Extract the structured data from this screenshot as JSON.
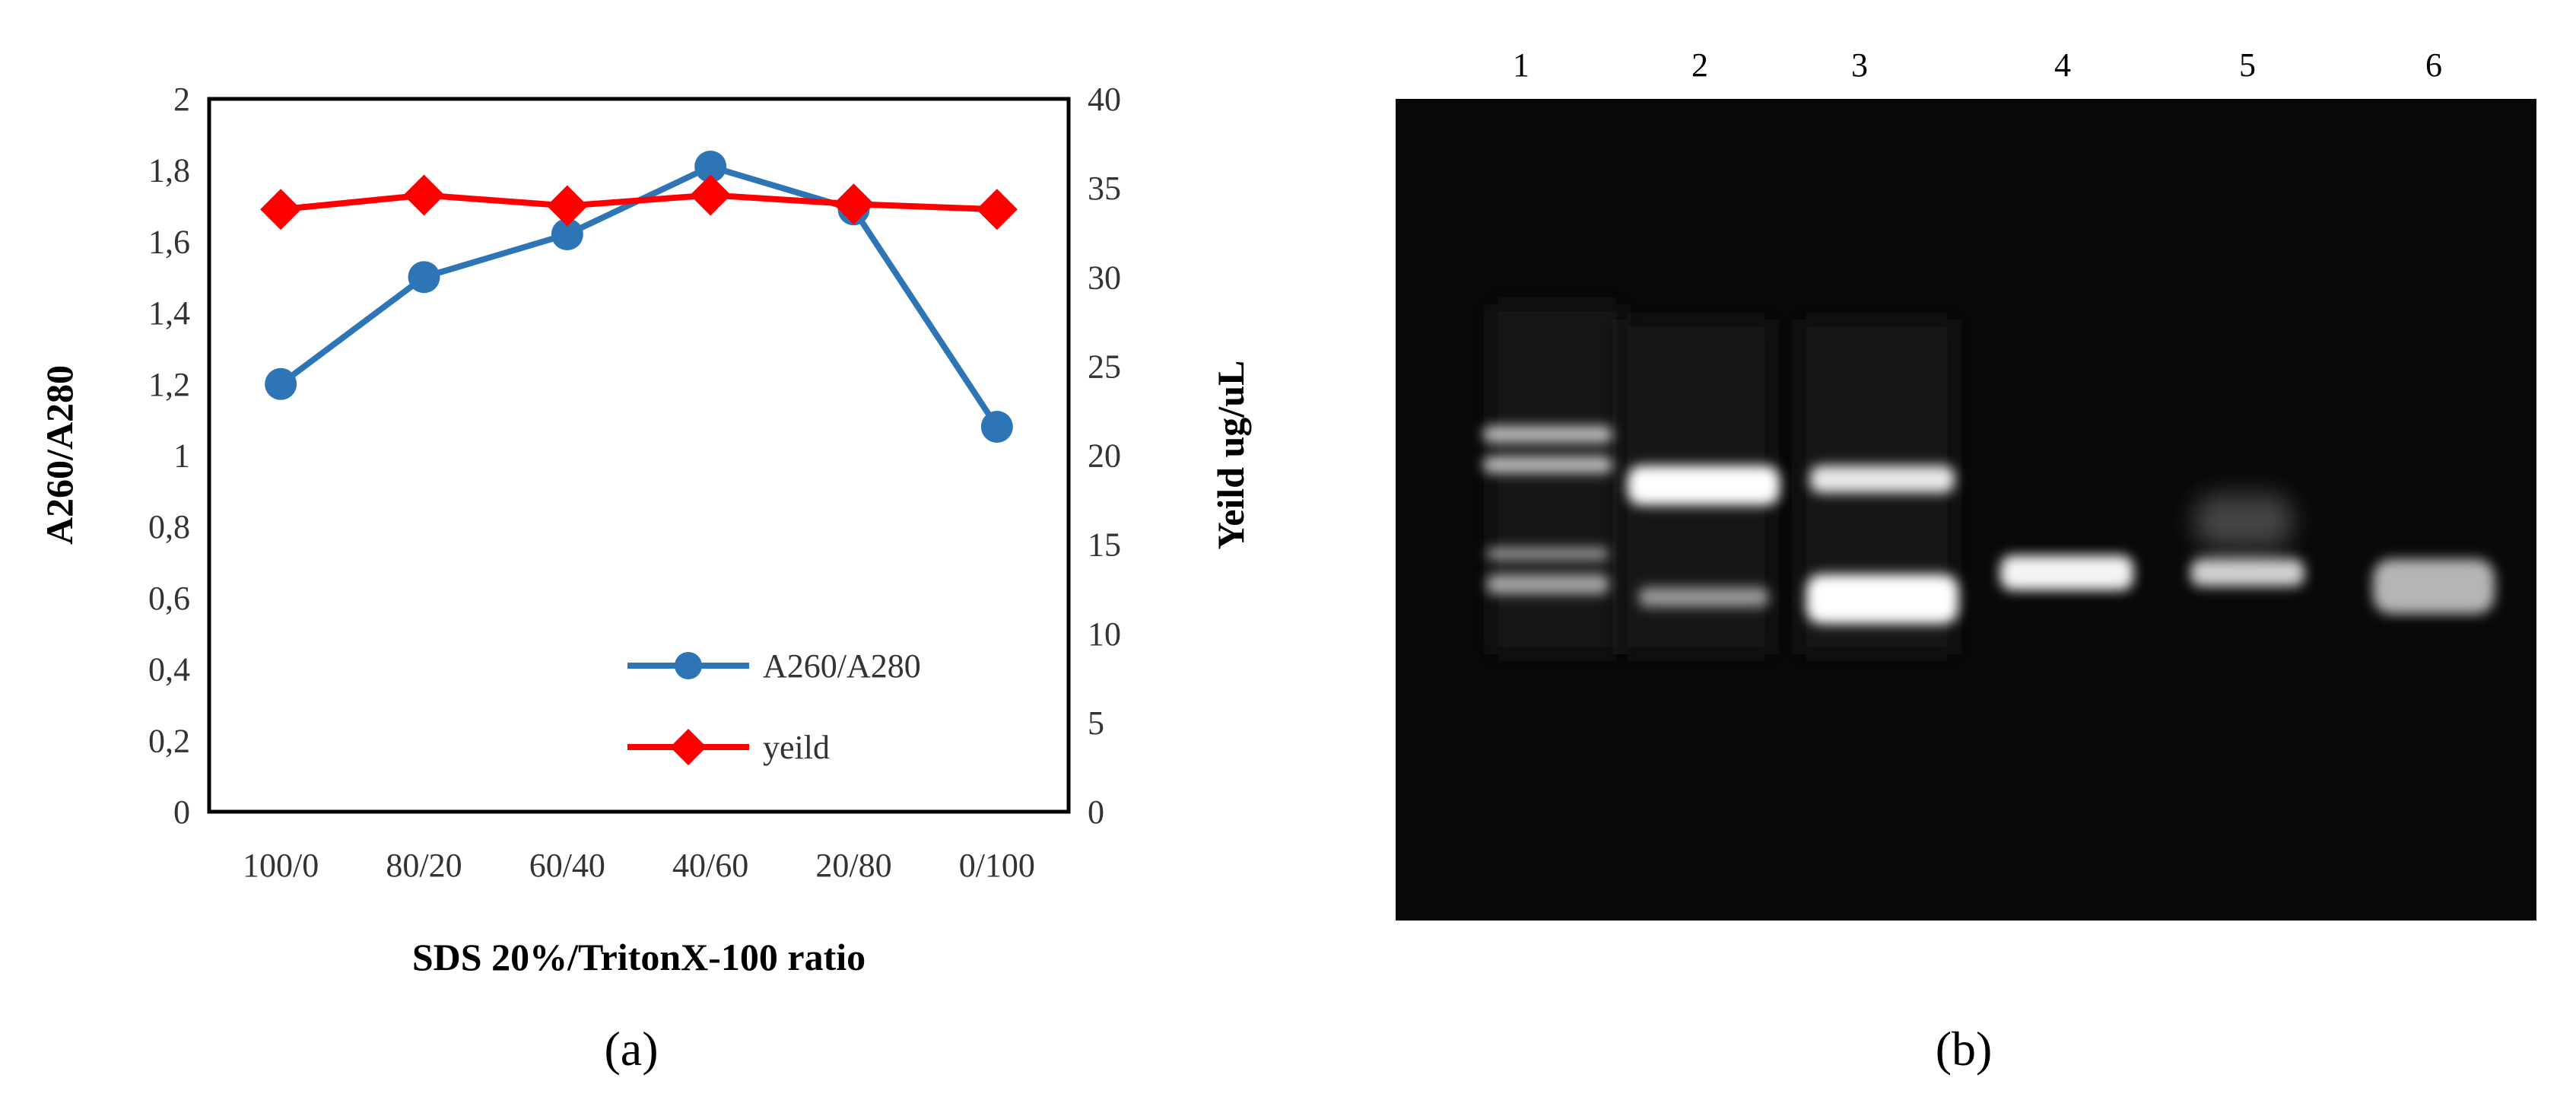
{
  "chart_data": {
    "type": "line",
    "xlabel": "SDS 20%/TritonX-100 ratio",
    "ylabel": "A260/A280",
    "y2label": "Yeild ug/uL",
    "categories": [
      "100/0",
      "80/20",
      "60/40",
      "40/60",
      "20/80",
      "0/100"
    ],
    "ylim": [
      0,
      2
    ],
    "y2lim": [
      0,
      40
    ],
    "yticks": [
      "0",
      "0,2",
      "0,4",
      "0,6",
      "0,8",
      "1",
      "1,2",
      "1,4",
      "1,6",
      "1,8",
      "2"
    ],
    "y2ticks": [
      "0",
      "5",
      "10",
      "15",
      "20",
      "25",
      "30",
      "35",
      "40"
    ],
    "grid": false,
    "legend_position": "bottom-right inside",
    "series": [
      {
        "name": "A260/A280",
        "axis": "left",
        "marker": "circle",
        "color": "#2E75B6",
        "values": [
          1.2,
          1.5,
          1.62,
          1.81,
          1.69,
          1.08
        ]
      },
      {
        "name": "yeild",
        "axis": "right",
        "marker": "diamond",
        "color": "#FF0000",
        "values": [
          33.8,
          34.6,
          34.0,
          34.6,
          34.1,
          33.8
        ]
      }
    ]
  },
  "panel_labels": {
    "a": "(a)",
    "b": "(b)"
  },
  "gel": {
    "lanes": [
      "1",
      "2",
      "3",
      "4",
      "5",
      "6"
    ]
  }
}
